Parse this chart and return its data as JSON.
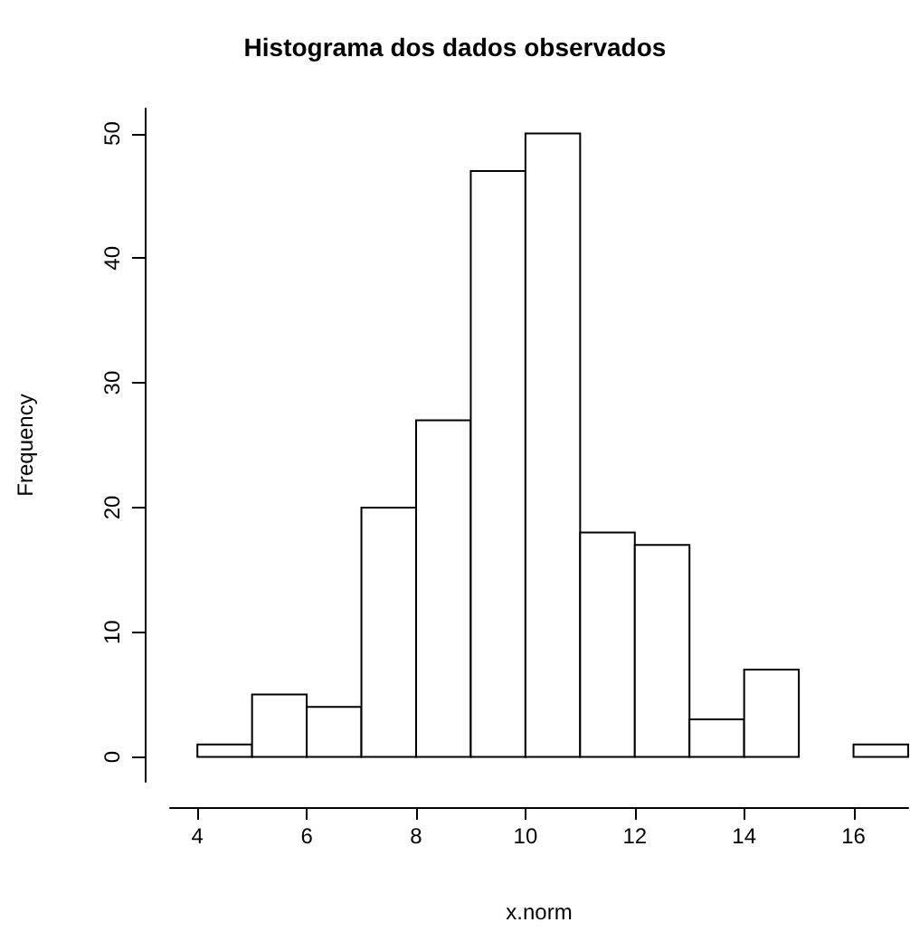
{
  "chart_data": {
    "type": "histogram",
    "title": "Histograma dos dados observados",
    "xlabel": "x.norm",
    "ylabel": "Frequency",
    "bins": [
      4,
      5,
      6,
      7,
      8,
      9,
      10,
      11,
      12,
      13,
      14,
      15,
      16,
      17
    ],
    "values": [
      1,
      5,
      4,
      20,
      27,
      47,
      50,
      18,
      17,
      3,
      7,
      0,
      1
    ],
    "color": "#ffffff",
    "xlim": [
      3.5,
      17
    ],
    "xticks": [
      4,
      6,
      8,
      10,
      12,
      14,
      16
    ],
    "ylim": [
      -2,
      52
    ],
    "yticks": [
      0,
      10,
      20,
      30,
      40,
      50
    ],
    "grid": false
  }
}
